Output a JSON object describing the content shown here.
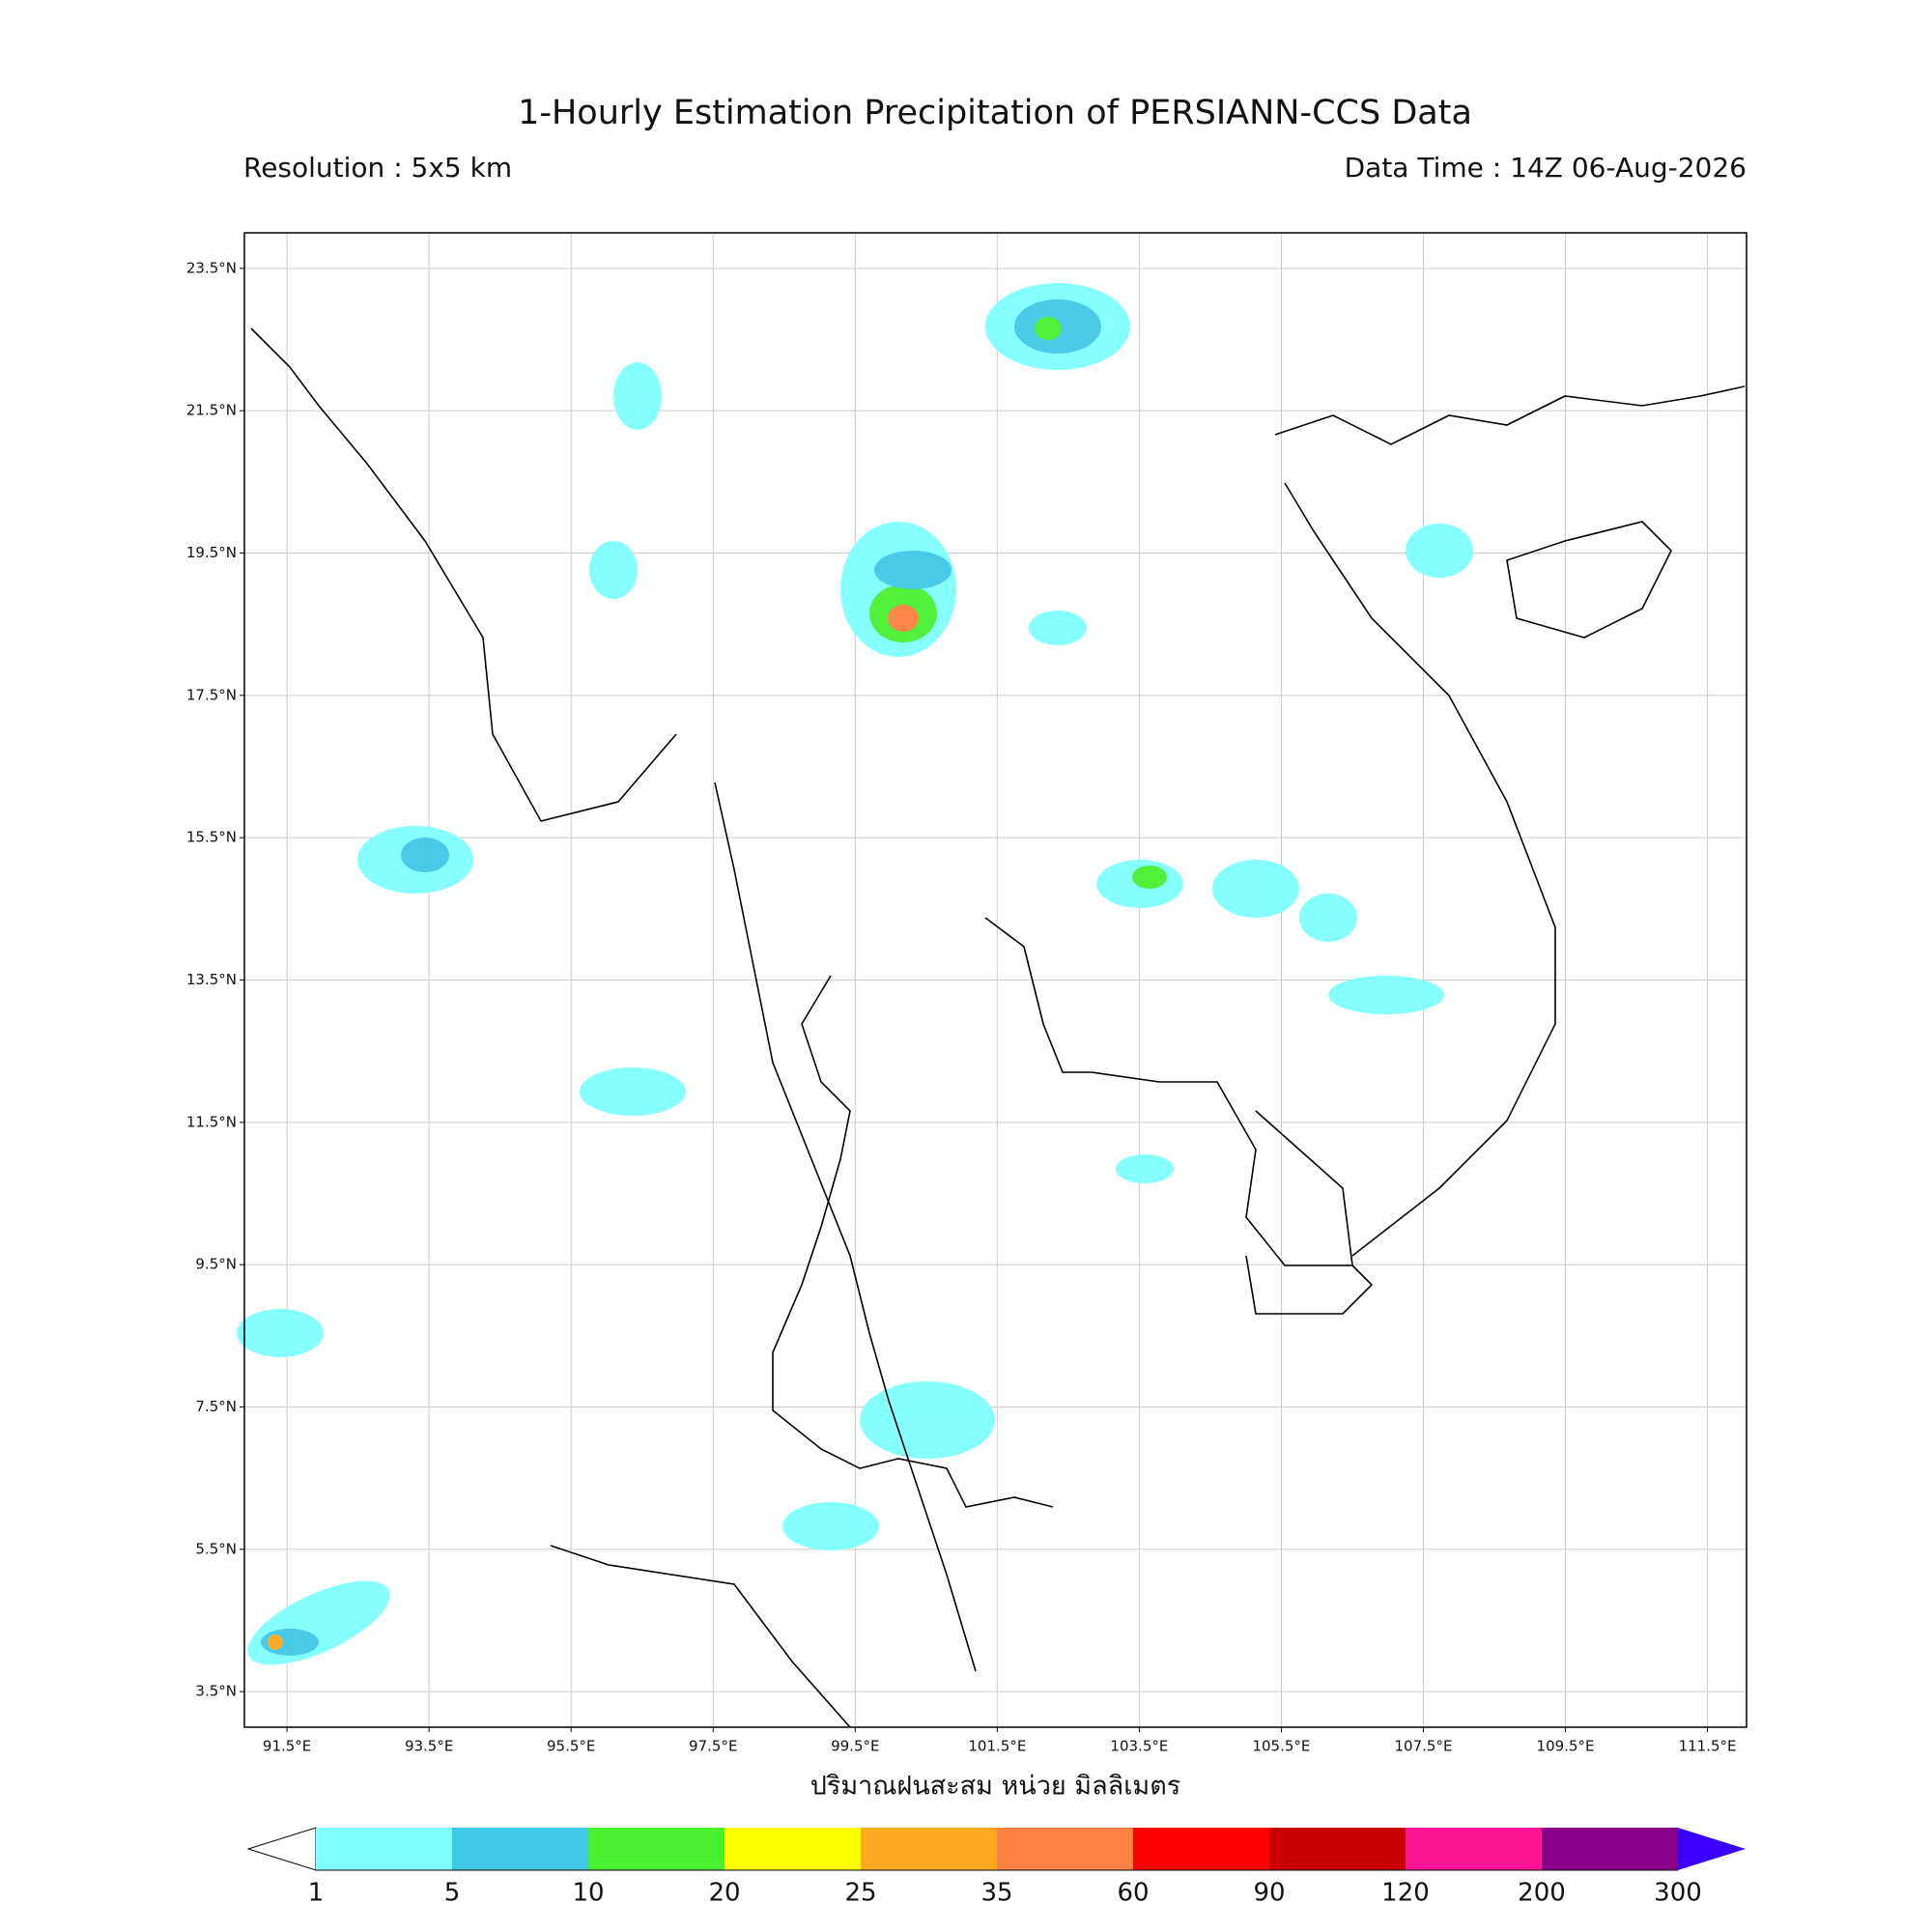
{
  "header": {
    "title": "1-Hourly Estimation Precipitation of PERSIANN-CCS Data",
    "resolution": "Resolution : 5x5 km",
    "data_time": "Data Time : 14Z 06-Aug-2026"
  },
  "map": {
    "lon_range": [
      90.9,
      112.05
    ],
    "lat_range": [
      3.0,
      24.0
    ],
    "lat_ticks": [
      {
        "value": 23.5,
        "label": "23.5°N"
      },
      {
        "value": 21.5,
        "label": "21.5°N"
      },
      {
        "value": 19.5,
        "label": "19.5°N"
      },
      {
        "value": 17.5,
        "label": "17.5°N"
      },
      {
        "value": 15.5,
        "label": "15.5°N"
      },
      {
        "value": 13.5,
        "label": "13.5°N"
      },
      {
        "value": 11.5,
        "label": "11.5°N"
      },
      {
        "value": 9.5,
        "label": "9.5°N"
      },
      {
        "value": 7.5,
        "label": "7.5°N"
      },
      {
        "value": 5.5,
        "label": "5.5°N"
      },
      {
        "value": 3.5,
        "label": "3.5°N"
      }
    ],
    "lon_ticks": [
      {
        "value": 91.5,
        "label": "91.5°E"
      },
      {
        "value": 93.5,
        "label": "93.5°E"
      },
      {
        "value": 95.5,
        "label": "95.5°E"
      },
      {
        "value": 97.5,
        "label": "97.5°E"
      },
      {
        "value": 99.5,
        "label": "99.5°E"
      },
      {
        "value": 101.5,
        "label": "101.5°E"
      },
      {
        "value": 103.5,
        "label": "103.5°E"
      },
      {
        "value": 105.5,
        "label": "105.5°E"
      },
      {
        "value": 107.5,
        "label": "107.5°E"
      },
      {
        "value": 109.5,
        "label": "109.5°E"
      },
      {
        "value": 111.5,
        "label": "111.5°E"
      }
    ],
    "grid": true,
    "x_label": "ปริมาณฝนสะสม หน่วย มิลลิเมตร"
  },
  "colorbar": {
    "levels": [
      1,
      5,
      10,
      20,
      25,
      35,
      60,
      90,
      120,
      200,
      300
    ],
    "colors": [
      "#80ffff",
      "#40c8e8",
      "#48f030",
      "#ffff00",
      "#ffa820",
      "#ff8040",
      "#ff0000",
      "#c80000",
      "#ff1493",
      "#8b008b"
    ],
    "under_color": "#ffffff",
    "over_color": "#3a00ff"
  }
}
